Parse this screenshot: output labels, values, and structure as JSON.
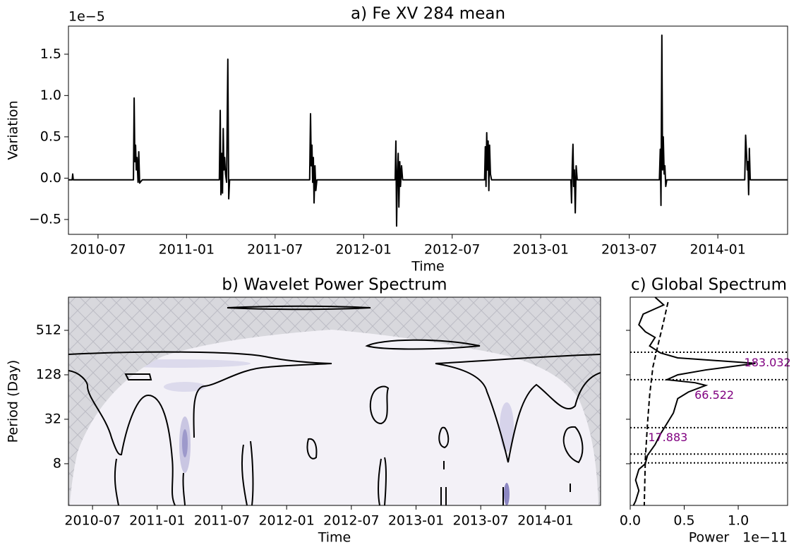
{
  "chart_data": [
    {
      "type": "line",
      "title": "a) Fe XV 284 mean",
      "xlabel": "Time",
      "ylabel": "Variation",
      "y_offset_label": "1e−5",
      "xlim": [
        2010.333,
        2014.394
      ],
      "ylim": [
        -0.68,
        1.84
      ],
      "xticks": [
        {
          "value": 2010.5,
          "label": "2010-07"
        },
        {
          "value": 2011.0,
          "label": "2011-01"
        },
        {
          "value": 2011.5,
          "label": "2011-07"
        },
        {
          "value": 2012.0,
          "label": "2012-01"
        },
        {
          "value": 2012.5,
          "label": "2012-07"
        },
        {
          "value": 2013.0,
          "label": "2013-01"
        },
        {
          "value": 2013.5,
          "label": "2013-07"
        },
        {
          "value": 2014.0,
          "label": "2014-01"
        }
      ],
      "yticks": [
        {
          "value": -0.5,
          "label": "−0.5"
        },
        {
          "value": 0,
          "label": "0.0"
        },
        0.5,
        {
          "value": 1,
          "label": "1.0"
        },
        1.5
      ],
      "color": "#000000",
      "x": [
        2010.333,
        2010.354,
        2010.357,
        2010.36,
        2010.7,
        2010.704,
        2010.708,
        2010.712,
        2010.716,
        2010.72,
        2010.726,
        2010.73,
        2010.735,
        2010.742,
        2010.75,
        2011.185,
        2011.19,
        2011.194,
        2011.199,
        2011.203,
        2011.207,
        2011.211,
        2011.215,
        2011.22,
        2011.226,
        2011.233,
        2011.238,
        2011.243,
        2011.695,
        2011.7,
        2011.704,
        2011.708,
        2011.712,
        2011.716,
        2011.72,
        2011.725,
        2011.73,
        2011.736,
        2012.178,
        2012.182,
        2012.186,
        2012.19,
        2012.195,
        2012.199,
        2012.204,
        2012.208,
        2012.214,
        2012.22,
        2012.683,
        2012.687,
        2012.691,
        2012.695,
        2012.699,
        2012.703,
        2012.707,
        2012.711,
        2012.716,
        2012.722,
        2013.17,
        2013.174,
        2013.178,
        2013.182,
        2013.186,
        2013.19,
        2013.195,
        2013.2,
        2013.206,
        2013.67,
        2013.675,
        2013.679,
        2013.684,
        2013.688,
        2013.692,
        2013.697,
        2013.701,
        2013.706,
        2013.712,
        2014.152,
        2014.157,
        2014.162,
        2014.166,
        2014.17,
        2014.174,
        2014.178,
        2014.183,
        2014.394
      ],
      "values": [
        -0.02,
        -0.02,
        0.05,
        -0.02,
        -0.02,
        0.97,
        0.2,
        0.4,
        0.1,
        0.25,
        -0.05,
        0.32,
        -0.06,
        -0.04,
        -0.02,
        -0.02,
        0.82,
        -0.2,
        0.3,
        -0.18,
        0.6,
        0.1,
        0.25,
        0.05,
        -0.05,
        1.44,
        -0.25,
        -0.02,
        -0.02,
        0.78,
        0.15,
        0.4,
        -0.05,
        0.25,
        -0.3,
        0.15,
        -0.15,
        -0.02,
        -0.02,
        0.45,
        -0.58,
        0.0,
        0.3,
        -0.35,
        0.2,
        -0.1,
        0.15,
        -0.02,
        -0.02,
        0.38,
        -0.1,
        0.55,
        0.1,
        0.45,
        -0.15,
        0.4,
        0.05,
        -0.02,
        -0.02,
        -0.3,
        0.15,
        0.41,
        -0.1,
        0.1,
        -0.42,
        0.15,
        -0.02,
        -0.02,
        0.35,
        -0.33,
        1.73,
        0.1,
        0.5,
        0.05,
        0.15,
        -0.1,
        -0.02,
        -0.02,
        0.52,
        0.3,
        0.1,
        0.2,
        -0.2,
        0.36,
        -0.02,
        -0.02
      ]
    },
    {
      "type": "contour",
      "title": "b) Wavelet Power Spectrum",
      "xlabel": "Time",
      "ylabel": "Period (Day)",
      "yscale": "log2",
      "xlim": [
        2010.314,
        2014.426
      ],
      "ylim": [
        2.18,
        1440
      ],
      "xticks": [
        {
          "value": 2010.5,
          "label": "2010-07"
        },
        {
          "value": 2011.0,
          "label": "2011-01"
        },
        {
          "value": 2011.5,
          "label": "2011-07"
        },
        {
          "value": 2012.0,
          "label": "2012-01"
        },
        {
          "value": 2012.5,
          "label": "2012-07"
        },
        {
          "value": 2013.0,
          "label": "2013-01"
        },
        {
          "value": 2013.5,
          "label": "2013-07"
        },
        {
          "value": 2014.0,
          "label": "2014-01"
        }
      ],
      "yticks": [
        8,
        32,
        128,
        512
      ]
    },
    {
      "type": "spectrum",
      "title": "c) Global Spectrum",
      "xlabel": "Power",
      "x_offset_label": "1e−11",
      "yscale": "log2",
      "sharey": 1,
      "xlim": [
        0,
        1.457
      ],
      "ylim": [
        2.18,
        1440
      ],
      "xticks": [
        {
          "value": 0,
          "label": "0.0"
        },
        0.5,
        {
          "value": 1,
          "label": "1.0"
        }
      ],
      "series": [
        {
          "color": "#000000",
          "dashed": false,
          "y": [
            1440,
            1130,
            850,
            610,
            490,
            410,
            315,
            253,
            217,
            183,
            149,
            128,
            110,
            100,
            92,
            75,
            61,
            39,
            28,
            20.2,
            14.5,
            10.4,
            8,
            6.7,
            4.8,
            3.46,
            2.5,
            2.18
          ],
          "values": [
            0.23,
            0.31,
            0.12,
            0.08,
            0.14,
            0.23,
            0.18,
            0.28,
            0.44,
            1.16,
            0.7,
            0.44,
            0.34,
            0.6,
            0.7,
            0.54,
            0.44,
            0.4,
            0.34,
            0.28,
            0.23,
            0.16,
            0.14,
            0.08,
            0.05,
            0.08,
            0.05,
            0.03
          ]
        },
        {
          "color": "#000000",
          "dashed": true,
          "y": [
            1235,
            681,
            253,
            163,
            68,
            28,
            9.3,
            2.18
          ],
          "values": [
            0.35,
            0.31,
            0.24,
            0.21,
            0.18,
            0.16,
            0.14,
            0.13
          ]
        }
      ],
      "hlines": [
        259,
        110,
        24.6,
        10.8,
        8.2
      ],
      "peaks": [
        {
          "y": 183.032,
          "x": 1.16
        },
        {
          "y": 66.522,
          "x": 0.7
        },
        {
          "y": 17.883,
          "x": 0.27
        }
      ]
    }
  ]
}
